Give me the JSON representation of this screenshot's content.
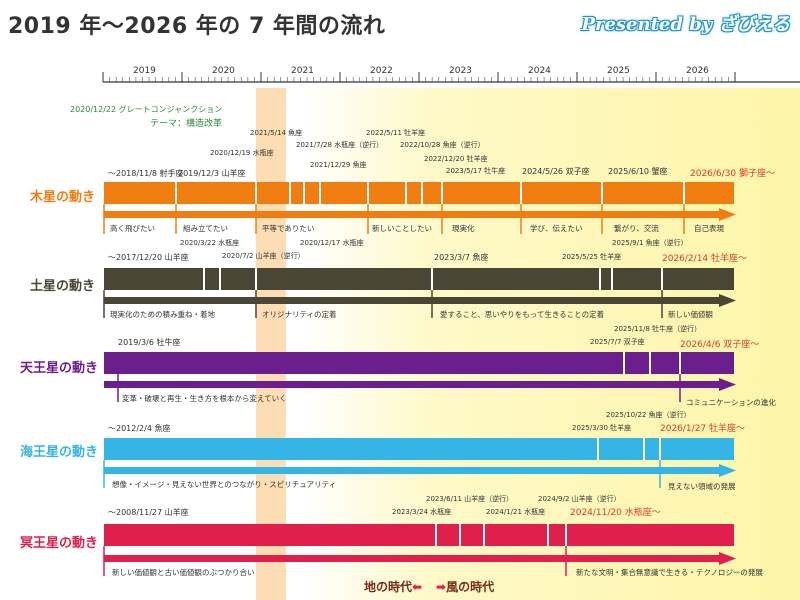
{
  "title": "2019 年〜2026 年の 7 年間の流れ",
  "presented": "Presented by ざびえる",
  "years": [
    "2019",
    "2020",
    "2021",
    "2022",
    "2023",
    "2024",
    "2025",
    "2026"
  ],
  "colors": {
    "jupiter": "#f07d10",
    "saturn": "#4a4636",
    "uranus": "#6b1f8e",
    "neptune": "#35b4e6",
    "pluto": "#e01f4d",
    "red_text": "#e03a2c",
    "green_text": "#2e8b3a",
    "highlight": "#fbd8a4",
    "wind_zone": "#fdf7b6"
  },
  "great_conjunction": {
    "line1": "2020/12/22 グレートコンジャンクション",
    "line2": "テーマ：構造改革"
  },
  "jupiter": {
    "name": "木星の動き",
    "dates": [
      "〜2018/11/8 射手座",
      "2019/12/3 山羊座",
      "2020/12/19 水瓶座",
      "2021/5/14 魚座",
      "2021/7/28 水瓶座（逆行）",
      "2021/12/29 魚座",
      "2022/5/11 牡羊座",
      "2022/10/28 魚座（逆行）",
      "2022/12/20 牡羊座",
      "2023/5/17 牡牛座",
      "2024/5/26 双子座",
      "2025/6/10 蟹座",
      "2026/6/30 獅子座〜"
    ],
    "themes": [
      "高く飛びたい",
      "組み立てたい",
      "平等でありたい",
      "新しいことしたい",
      "現実化",
      "学び、伝えたい",
      "繋がり、交流",
      "自己表現"
    ]
  },
  "saturn": {
    "name": "土星の動き",
    "dates": [
      "〜2017/12/20 山羊座",
      "2020/3/22 水瓶座",
      "2020/7/2 山羊座（逆行）",
      "2020/12/17 水瓶座",
      "2023/3/7 魚座",
      "2025/5/25 牡羊座",
      "2025/9/1 魚座（逆行）",
      "2026/2/14 牡羊座〜"
    ],
    "themes": [
      "現実化のための積み重ね・着地",
      "オリジナリティの定着",
      "愛すること、思いやりをもって生きることの定着",
      "新しい価値観"
    ]
  },
  "uranus": {
    "name": "天王星の動き",
    "dates": [
      "2019/3/6 牡牛座",
      "2025/7/7 双子座",
      "2025/11/8 牡牛座（逆行）",
      "2026/4/6 双子座〜"
    ],
    "themes": [
      "変革・破壊と再生・生き方を根本から変えていく",
      "コミュニケーションの進化"
    ]
  },
  "neptune": {
    "name": "海王星の動き",
    "dates": [
      "〜2012/2/4 魚座",
      "2025/3/30 牡羊座",
      "2025/10/22 魚座（逆行）",
      "2026/1/27 牡羊座〜"
    ],
    "themes": [
      "想像・イメージ・見えない世界とのつながり・スピリチュアリティ",
      "見えない領域の発展"
    ]
  },
  "pluto": {
    "name": "冥王星の動き",
    "dates": [
      "〜2008/11/27 山羊座",
      "2023/3/24 水瓶座",
      "2023/6/11 山羊座（逆行）",
      "2024/1/21 水瓶座",
      "2024/9/2 山羊座（逆行）",
      "2024/11/20 水瓶座〜"
    ],
    "themes": [
      "新しい価値観と古い価値観のぶつかり合い",
      "新たな文明・集合無意識で生きる・テクノロジーの発展"
    ]
  },
  "era": {
    "earth": "地の時代",
    "wind": "風の時代"
  }
}
